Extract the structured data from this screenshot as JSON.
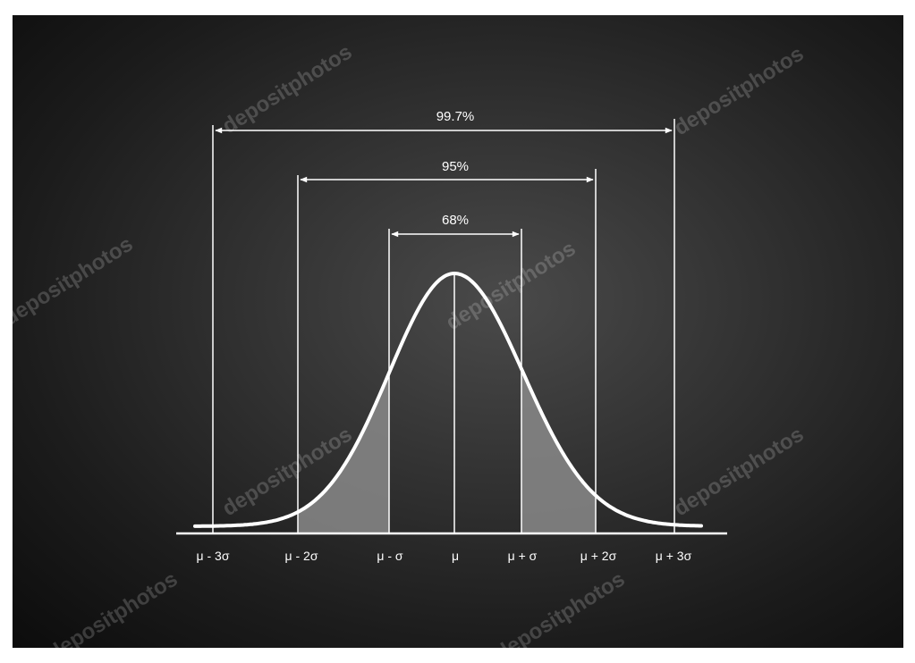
{
  "diagram": {
    "type": "normal-distribution",
    "ranges": [
      {
        "label": "68%",
        "from": "μ-σ",
        "to": "μ+σ",
        "sigma": 1
      },
      {
        "label": "95%",
        "from": "μ-2σ",
        "to": "μ+2σ",
        "sigma": 2
      },
      {
        "label": "99.7%",
        "from": "μ-3σ",
        "to": "μ+3σ",
        "sigma": 3
      }
    ],
    "tick_labels": [
      "μ - 3σ",
      "μ - 2σ",
      "μ - σ",
      "μ",
      "μ + σ",
      "μ + 2σ",
      "μ + 3σ"
    ],
    "colors": {
      "chalk": "#ffffff",
      "board": "#2f2f2f",
      "shade": "#8a8a8a"
    }
  },
  "watermark": {
    "text": "depositphotos"
  }
}
